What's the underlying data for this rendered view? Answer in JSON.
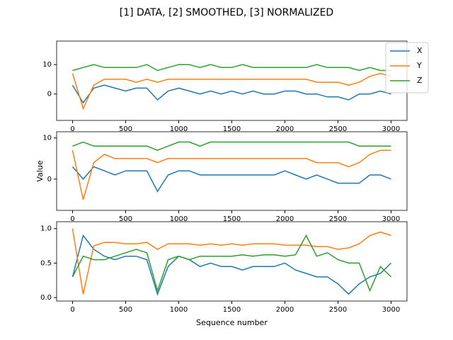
{
  "title": "[1] DATA, [2] SMOOTHED, [3] NORMALIZED",
  "chart_data": [
    {
      "type": "line",
      "legend": "upper right",
      "x": [
        0,
        100,
        200,
        300,
        400,
        500,
        600,
        700,
        800,
        900,
        1000,
        1100,
        1200,
        1300,
        1400,
        1500,
        1600,
        1700,
        1800,
        1900,
        2000,
        2100,
        2200,
        2300,
        2400,
        2500,
        2600,
        2700,
        2800,
        2900,
        3000
      ],
      "xlim": [
        -150,
        3150
      ],
      "xticks": [
        0,
        500,
        1000,
        1500,
        2000,
        2500,
        3000
      ],
      "ylim": [
        -9,
        18
      ],
      "yticks": [
        0,
        10
      ],
      "series": [
        {
          "name": "X",
          "color": "#1f77b4",
          "values": [
            3,
            -3,
            2,
            3,
            2,
            1,
            2,
            2,
            -2,
            1,
            2,
            1,
            0,
            1,
            0,
            1,
            0,
            1,
            0,
            0,
            1,
            1,
            0,
            0,
            -1,
            -1,
            -2,
            0,
            0,
            1,
            0
          ]
        },
        {
          "name": "Y",
          "color": "#ff7f0e",
          "values": [
            7,
            -5,
            3,
            5,
            5,
            5,
            4,
            5,
            4,
            5,
            5,
            5,
            5,
            5,
            5,
            5,
            5,
            5,
            5,
            5,
            5,
            5,
            5,
            4,
            4,
            4,
            3,
            4,
            6,
            7,
            6
          ]
        },
        {
          "name": "Z",
          "color": "#2ca02c",
          "values": [
            8,
            9,
            10,
            9,
            9,
            9,
            9,
            10,
            8,
            9,
            10,
            10,
            9,
            10,
            9,
            9,
            10,
            9,
            9,
            9,
            9,
            9,
            9,
            10,
            9,
            9,
            9,
            8,
            9,
            8,
            8
          ]
        }
      ]
    },
    {
      "type": "line",
      "ylabel": "Value",
      "x": [
        0,
        100,
        200,
        300,
        400,
        500,
        600,
        700,
        800,
        900,
        1000,
        1100,
        1200,
        1300,
        1400,
        1500,
        1600,
        1700,
        1800,
        1900,
        2000,
        2100,
        2200,
        2300,
        2400,
        2500,
        2600,
        2700,
        2800,
        2900,
        3000
      ],
      "xlim": [
        -150,
        3150
      ],
      "xticks": [
        0,
        500,
        1000,
        1500,
        2000,
        2500,
        3000
      ],
      "ylim": [
        -7.6,
        11.5
      ],
      "yticks": [
        0,
        10
      ],
      "series": [
        {
          "color": "#1f77b4",
          "values": [
            3,
            0,
            3,
            2,
            1,
            2,
            2,
            2,
            -3,
            1,
            2,
            2,
            1,
            1,
            1,
            1,
            1,
            1,
            1,
            1,
            2,
            1,
            0,
            1,
            0,
            -1,
            -1,
            -1,
            1,
            1,
            0
          ]
        },
        {
          "color": "#ff7f0e",
          "values": [
            7,
            -5,
            4,
            6,
            5,
            5,
            5,
            5,
            4,
            5,
            5,
            5,
            5,
            5,
            5,
            5,
            5,
            5,
            5,
            5,
            5,
            5,
            5,
            4,
            4,
            4,
            3,
            4,
            6,
            7,
            7
          ]
        },
        {
          "color": "#2ca02c",
          "values": [
            8,
            9,
            8,
            8,
            8,
            8,
            8,
            8,
            7,
            8,
            9,
            9,
            8,
            9,
            9,
            9,
            9,
            9,
            9,
            9,
            9,
            9,
            9,
            9,
            9,
            9,
            9,
            8,
            8,
            8,
            8
          ]
        }
      ]
    },
    {
      "type": "line",
      "xlabel": "Sequence number",
      "x": [
        0,
        100,
        200,
        300,
        400,
        500,
        600,
        700,
        800,
        900,
        1000,
        1100,
        1200,
        1300,
        1400,
        1500,
        1600,
        1700,
        1800,
        1900,
        2000,
        2100,
        2200,
        2300,
        2400,
        2500,
        2600,
        2700,
        2800,
        2900,
        3000
      ],
      "xlim": [
        -150,
        3150
      ],
      "xticks": [
        0,
        500,
        1000,
        1500,
        2000,
        2500,
        3000
      ],
      "ylim": [
        -0.05,
        1.1
      ],
      "yticks": [
        {
          "value": 0,
          "label": "0.0"
        },
        {
          "value": 0.5,
          "label": "0.5"
        },
        {
          "value": 1,
          "label": "1.0"
        }
      ],
      "series": [
        {
          "color": "#1f77b4",
          "values": [
            0.3,
            0.9,
            0.7,
            0.6,
            0.55,
            0.6,
            0.6,
            0.55,
            0.05,
            0.45,
            0.6,
            0.55,
            0.45,
            0.5,
            0.45,
            0.45,
            0.4,
            0.45,
            0.45,
            0.45,
            0.5,
            0.4,
            0.35,
            0.3,
            0.3,
            0.2,
            0.05,
            0.2,
            0.3,
            0.35,
            0.5
          ]
        },
        {
          "color": "#ff7f0e",
          "values": [
            1.0,
            0.05,
            0.75,
            0.8,
            0.8,
            0.78,
            0.78,
            0.8,
            0.7,
            0.78,
            0.78,
            0.78,
            0.76,
            0.78,
            0.76,
            0.78,
            0.76,
            0.78,
            0.78,
            0.78,
            0.76,
            0.76,
            0.76,
            0.74,
            0.74,
            0.7,
            0.72,
            0.78,
            0.9,
            0.95,
            0.9
          ]
        },
        {
          "color": "#2ca02c",
          "values": [
            0.3,
            0.6,
            0.55,
            0.55,
            0.6,
            0.65,
            0.7,
            0.65,
            0.1,
            0.55,
            0.6,
            0.55,
            0.6,
            0.6,
            0.6,
            0.6,
            0.62,
            0.6,
            0.62,
            0.62,
            0.6,
            0.62,
            0.9,
            0.6,
            0.65,
            0.55,
            0.5,
            0.5,
            0.1,
            0.45,
            0.3
          ]
        }
      ]
    }
  ]
}
